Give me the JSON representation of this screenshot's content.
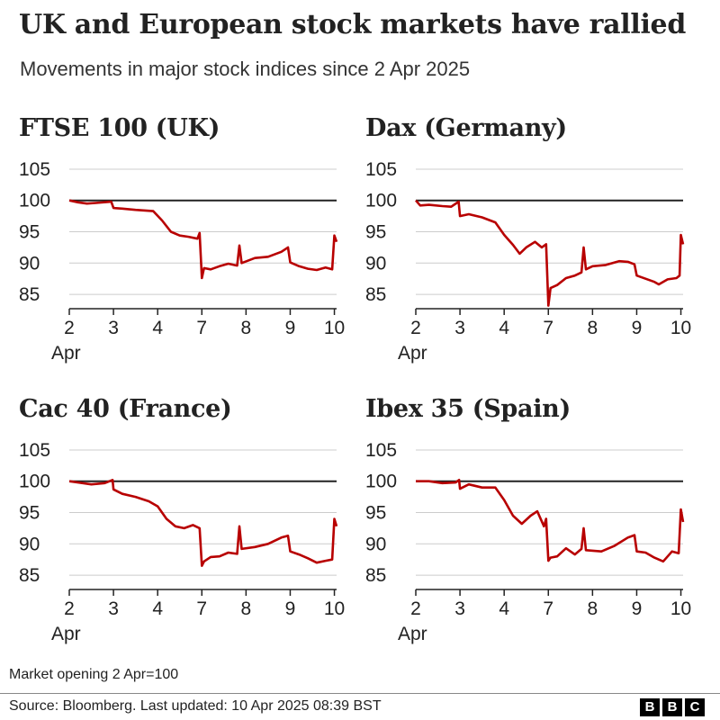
{
  "title": "UK and European stock markets have rallied",
  "subtitle": "Movements in major stock indices since 2 Apr 2025",
  "note": "Market opening 2 Apr=100",
  "source": "Source: Bloomberg. Last updated: 10 Apr 2025 08:39 BST",
  "logo": [
    "B",
    "B",
    "C"
  ],
  "colors": {
    "line": "#b80000",
    "baseline": "#222222",
    "grid": "#cccccc",
    "axis": "#222222"
  },
  "chart_data": [
    {
      "type": "line",
      "title": "FTSE 100 (UK)",
      "ylim": [
        83,
        106
      ],
      "yticks": [
        85,
        90,
        95,
        100,
        105
      ],
      "xlim": [
        0,
        6.05
      ],
      "xticks": [
        {
          "x": 0,
          "label": "2"
        },
        {
          "x": 1,
          "label": "3"
        },
        {
          "x": 2,
          "label": "4"
        },
        {
          "x": 3,
          "label": "7"
        },
        {
          "x": 4,
          "label": "8"
        },
        {
          "x": 5,
          "label": "9"
        },
        {
          "x": 6,
          "label": "10"
        }
      ],
      "xsublabel": "Apr",
      "reference": 100,
      "grid": true,
      "series": [
        {
          "points": [
            [
              0,
              100
            ],
            [
              0.2,
              99.7
            ],
            [
              0.4,
              99.5
            ],
            [
              0.6,
              99.6
            ],
            [
              0.95,
              99.8
            ],
            [
              1.0,
              98.8
            ],
            [
              1.2,
              98.7
            ],
            [
              1.5,
              98.5
            ],
            [
              1.9,
              98.3
            ],
            [
              2.1,
              96.8
            ],
            [
              2.3,
              95
            ],
            [
              2.5,
              94.4
            ],
            [
              2.7,
              94.2
            ],
            [
              2.9,
              93.9
            ],
            [
              2.95,
              94.8
            ],
            [
              3.0,
              87.6
            ],
            [
              3.05,
              89.2
            ],
            [
              3.2,
              89.0
            ],
            [
              3.4,
              89.5
            ],
            [
              3.6,
              89.9
            ],
            [
              3.8,
              89.6
            ],
            [
              3.85,
              92.8
            ],
            [
              3.9,
              90
            ],
            [
              4.2,
              90.8
            ],
            [
              4.5,
              91.0
            ],
            [
              4.8,
              91.8
            ],
            [
              4.95,
              92.5
            ],
            [
              5.0,
              90.1
            ],
            [
              5.2,
              89.5
            ],
            [
              5.4,
              89.1
            ],
            [
              5.6,
              88.9
            ],
            [
              5.8,
              89.3
            ],
            [
              5.95,
              89.0
            ],
            [
              6.0,
              94.4
            ],
            [
              6.05,
              93.4
            ]
          ]
        }
      ]
    },
    {
      "type": "line",
      "title": "Dax (Germany)",
      "ylim": [
        83,
        106
      ],
      "yticks": [
        85,
        90,
        95,
        100,
        105
      ],
      "xlim": [
        0,
        6.05
      ],
      "xticks": [
        {
          "x": 0,
          "label": "2"
        },
        {
          "x": 1,
          "label": "3"
        },
        {
          "x": 2,
          "label": "4"
        },
        {
          "x": 3,
          "label": "7"
        },
        {
          "x": 4,
          "label": "8"
        },
        {
          "x": 5,
          "label": "9"
        },
        {
          "x": 6,
          "label": "10"
        }
      ],
      "xsublabel": "Apr",
      "reference": 100,
      "grid": true,
      "series": [
        {
          "points": [
            [
              0,
              100
            ],
            [
              0.1,
              99.2
            ],
            [
              0.3,
              99.3
            ],
            [
              0.6,
              99.1
            ],
            [
              0.8,
              99.0
            ],
            [
              0.97,
              99.8
            ],
            [
              1.0,
              97.5
            ],
            [
              1.2,
              97.8
            ],
            [
              1.5,
              97.3
            ],
            [
              1.8,
              96.5
            ],
            [
              2.0,
              94.5
            ],
            [
              2.2,
              92.9
            ],
            [
              2.35,
              91.5
            ],
            [
              2.5,
              92.5
            ],
            [
              2.7,
              93.4
            ],
            [
              2.85,
              92.5
            ],
            [
              2.95,
              93.0
            ],
            [
              3.0,
              83.2
            ],
            [
              3.05,
              86.0
            ],
            [
              3.2,
              86.5
            ],
            [
              3.4,
              87.6
            ],
            [
              3.6,
              88.0
            ],
            [
              3.75,
              88.5
            ],
            [
              3.8,
              92.5
            ],
            [
              3.85,
              89.0
            ],
            [
              4.0,
              89.5
            ],
            [
              4.3,
              89.7
            ],
            [
              4.6,
              90.3
            ],
            [
              4.8,
              90.2
            ],
            [
              4.95,
              89.8
            ],
            [
              5.0,
              88.0
            ],
            [
              5.2,
              87.5
            ],
            [
              5.4,
              87.0
            ],
            [
              5.5,
              86.6
            ],
            [
              5.7,
              87.4
            ],
            [
              5.9,
              87.6
            ],
            [
              5.97,
              88.0
            ],
            [
              6.0,
              94.5
            ],
            [
              6.05,
              93.0
            ]
          ]
        }
      ]
    },
    {
      "type": "line",
      "title": "Cac 40 (France)",
      "ylim": [
        83,
        106
      ],
      "yticks": [
        85,
        90,
        95,
        100,
        105
      ],
      "xlim": [
        0,
        6.05
      ],
      "xticks": [
        {
          "x": 0,
          "label": "2"
        },
        {
          "x": 1,
          "label": "3"
        },
        {
          "x": 2,
          "label": "4"
        },
        {
          "x": 3,
          "label": "7"
        },
        {
          "x": 4,
          "label": "8"
        },
        {
          "x": 5,
          "label": "9"
        },
        {
          "x": 6,
          "label": "10"
        }
      ],
      "xsublabel": "Apr",
      "reference": 100,
      "grid": true,
      "series": [
        {
          "points": [
            [
              0,
              100
            ],
            [
              0.2,
              99.8
            ],
            [
              0.5,
              99.5
            ],
            [
              0.8,
              99.7
            ],
            [
              0.98,
              100.2
            ],
            [
              1.0,
              98.7
            ],
            [
              1.2,
              98.0
            ],
            [
              1.5,
              97.5
            ],
            [
              1.8,
              96.8
            ],
            [
              2.0,
              96.0
            ],
            [
              2.2,
              94.0
            ],
            [
              2.4,
              92.8
            ],
            [
              2.6,
              92.5
            ],
            [
              2.8,
              93.0
            ],
            [
              2.95,
              92.5
            ],
            [
              3.0,
              86.5
            ],
            [
              3.05,
              87.2
            ],
            [
              3.2,
              87.9
            ],
            [
              3.4,
              88.0
            ],
            [
              3.6,
              88.6
            ],
            [
              3.8,
              88.4
            ],
            [
              3.85,
              92.8
            ],
            [
              3.9,
              89.2
            ],
            [
              4.2,
              89.5
            ],
            [
              4.5,
              90.0
            ],
            [
              4.8,
              91.0
            ],
            [
              4.95,
              91.3
            ],
            [
              5.0,
              88.8
            ],
            [
              5.2,
              88.3
            ],
            [
              5.4,
              87.7
            ],
            [
              5.6,
              87.0
            ],
            [
              5.8,
              87.3
            ],
            [
              5.95,
              87.5
            ],
            [
              6.0,
              94.0
            ],
            [
              6.05,
              92.8
            ]
          ]
        }
      ]
    },
    {
      "type": "line",
      "title": "Ibex 35 (Spain)",
      "ylim": [
        83,
        106
      ],
      "yticks": [
        85,
        90,
        95,
        100,
        105
      ],
      "xlim": [
        0,
        6.05
      ],
      "xticks": [
        {
          "x": 0,
          "label": "2"
        },
        {
          "x": 1,
          "label": "3"
        },
        {
          "x": 2,
          "label": "4"
        },
        {
          "x": 3,
          "label": "7"
        },
        {
          "x": 4,
          "label": "8"
        },
        {
          "x": 5,
          "label": "9"
        },
        {
          "x": 6,
          "label": "10"
        }
      ],
      "xsublabel": "Apr",
      "reference": 100,
      "grid": true,
      "series": [
        {
          "points": [
            [
              0,
              100
            ],
            [
              0.3,
              100.0
            ],
            [
              0.6,
              99.7
            ],
            [
              0.9,
              99.8
            ],
            [
              0.98,
              100.2
            ],
            [
              1.0,
              98.8
            ],
            [
              1.2,
              99.5
            ],
            [
              1.5,
              99.0
            ],
            [
              1.8,
              99.0
            ],
            [
              2.0,
              97.0
            ],
            [
              2.2,
              94.5
            ],
            [
              2.4,
              93.2
            ],
            [
              2.6,
              94.5
            ],
            [
              2.75,
              95.2
            ],
            [
              2.9,
              92.8
            ],
            [
              2.95,
              94.0
            ],
            [
              3.0,
              87.3
            ],
            [
              3.05,
              87.8
            ],
            [
              3.2,
              88.0
            ],
            [
              3.4,
              89.3
            ],
            [
              3.6,
              88.3
            ],
            [
              3.75,
              89.2
            ],
            [
              3.8,
              92.5
            ],
            [
              3.85,
              89.0
            ],
            [
              4.2,
              88.8
            ],
            [
              4.5,
              89.7
            ],
            [
              4.8,
              91.0
            ],
            [
              4.95,
              91.4
            ],
            [
              5.0,
              88.8
            ],
            [
              5.2,
              88.6
            ],
            [
              5.4,
              87.8
            ],
            [
              5.6,
              87.2
            ],
            [
              5.8,
              88.8
            ],
            [
              5.95,
              88.5
            ],
            [
              6.0,
              95.5
            ],
            [
              6.05,
              93.5
            ]
          ]
        }
      ]
    }
  ]
}
